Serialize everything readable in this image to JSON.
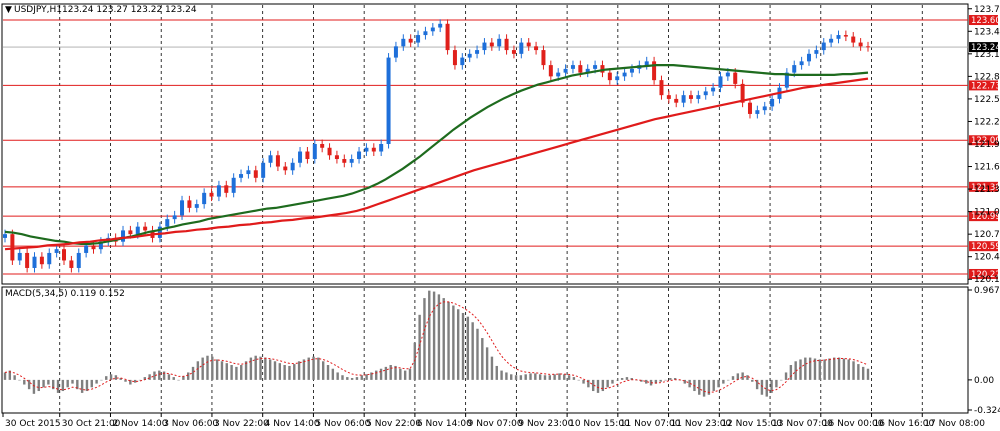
{
  "header": {
    "symbol_info": "USDJPY,H1",
    "ohlc": "123.24 123.27 123.22 123.24"
  },
  "macd_header": {
    "label": "MACD(5,34,5) 0.119 0.152"
  },
  "colors": {
    "bull_candle": "#1e6fd9",
    "bear_candle": "#e0201b",
    "ma_fast": "#1e6b1e",
    "ma_slow": "#e01b1b",
    "level_line": "#e01b1b",
    "macd_bar": "#7f7f7f",
    "signal_line": "#e01b1b",
    "current_price_line": "#a9a9a9"
  },
  "chart_data": {
    "type": "candlestick",
    "y_axis": {
      "range": [
        120.1,
        123.8
      ],
      "ticks": [
        "123.75",
        "123.45",
        "123.15",
        "122.85",
        "122.55",
        "122.25",
        "121.95",
        "121.65",
        "121.35",
        "121.05",
        "120.75",
        "120.45",
        "120.15"
      ]
    },
    "x_axis": {
      "labels": [
        "30 Oct 2015",
        "30 Oct 21:00",
        "2 Nov 14:00",
        "3 Nov 06:00",
        "3 Nov 22:00",
        "4 Nov 14:00",
        "5 Nov 06:00",
        "5 Nov 22:00",
        "6 Nov 14:00",
        "9 Nov 07:00",
        "9 Nov 23:00",
        "10 Nov 15:00",
        "11 Nov 07:00",
        "11 Nov 23:00",
        "12 Nov 15:00",
        "13 Nov 07:00",
        "16 Nov 00:00",
        "16 Nov 16:00",
        "17 Nov 08:00"
      ]
    },
    "levels": [
      {
        "label": "123.60",
        "value": 123.6
      },
      {
        "label": "122.73",
        "value": 122.73
      },
      {
        "label": "122.00",
        "value": 122.0
      },
      {
        "label": "121.38",
        "value": 121.38
      },
      {
        "label": "120.99",
        "value": 120.99
      },
      {
        "label": "120.59",
        "value": 120.59
      },
      {
        "label": "120.22",
        "value": 120.22
      }
    ],
    "current_price": {
      "label": "123.24",
      "value": 123.24
    },
    "closes": [
      120.75,
      120.4,
      120.5,
      120.3,
      120.45,
      120.35,
      120.5,
      120.55,
      120.4,
      120.3,
      120.5,
      120.6,
      120.55,
      120.65,
      120.7,
      120.65,
      120.8,
      120.75,
      120.85,
      120.8,
      120.7,
      120.85,
      120.95,
      121.0,
      121.2,
      121.1,
      121.15,
      121.3,
      121.25,
      121.4,
      121.3,
      121.5,
      121.55,
      121.6,
      121.5,
      121.7,
      121.8,
      121.65,
      121.6,
      121.7,
      121.85,
      121.75,
      121.95,
      121.9,
      121.8,
      121.75,
      121.7,
      121.75,
      121.85,
      121.9,
      121.85,
      121.95,
      123.1,
      123.25,
      123.35,
      123.3,
      123.4,
      123.45,
      123.5,
      123.55,
      123.2,
      123.0,
      123.1,
      123.15,
      123.2,
      123.3,
      123.25,
      123.35,
      123.2,
      123.15,
      123.3,
      123.25,
      123.2,
      123.0,
      122.85,
      122.9,
      122.95,
      123.0,
      122.9,
      122.95,
      123.0,
      122.9,
      122.8,
      122.85,
      122.9,
      122.95,
      123.0,
      123.05,
      122.8,
      122.6,
      122.55,
      122.5,
      122.6,
      122.55,
      122.6,
      122.65,
      122.7,
      122.85,
      122.9,
      122.75,
      122.5,
      122.35,
      122.4,
      122.45,
      122.55,
      122.7,
      122.9,
      123.0,
      123.05,
      123.15,
      123.2,
      123.3,
      123.35,
      123.4,
      123.38,
      123.3,
      123.25,
      123.24
    ],
    "series": [
      {
        "name": "",
        "type": "ma_fast",
        "values": [
          120.78,
          120.77,
          120.75,
          120.72,
          120.7,
          120.68,
          120.66,
          120.65,
          120.63,
          120.62,
          120.62,
          120.63,
          120.65,
          120.67,
          120.7,
          120.72,
          120.75,
          120.78,
          120.8,
          120.83,
          120.85,
          120.88,
          120.9,
          120.92,
          120.95,
          120.97,
          120.99,
          121.01,
          121.03,
          121.05,
          121.07,
          121.09,
          121.1,
          121.12,
          121.14,
          121.16,
          121.18,
          121.2,
          121.22,
          121.24,
          121.26,
          121.29,
          121.33,
          121.37,
          121.42,
          121.48,
          121.55,
          121.62,
          121.7,
          121.78,
          121.87,
          121.96,
          122.05,
          122.14,
          122.22,
          122.3,
          122.37,
          122.44,
          122.5,
          122.56,
          122.61,
          122.66,
          122.7,
          122.74,
          122.77,
          122.8,
          122.83,
          122.86,
          122.88,
          122.9,
          122.92,
          122.94,
          122.95,
          122.96,
          122.97,
          122.98,
          122.99,
          123.0,
          123.0,
          123.0,
          122.99,
          122.98,
          122.97,
          122.96,
          122.95,
          122.94,
          122.93,
          122.92,
          122.91,
          122.9,
          122.89,
          122.88,
          122.88,
          122.87,
          122.87,
          122.87,
          122.87,
          122.87,
          122.87,
          122.88,
          122.88,
          122.89,
          122.9
        ]
      },
      {
        "name": "",
        "type": "ma_slow",
        "values": [
          120.55,
          120.56,
          120.57,
          120.58,
          120.6,
          120.61,
          120.62,
          120.64,
          120.65,
          120.67,
          120.68,
          120.7,
          120.71,
          120.73,
          120.75,
          120.76,
          120.78,
          120.79,
          120.81,
          120.82,
          120.84,
          120.85,
          120.87,
          120.88,
          120.9,
          120.91,
          120.93,
          120.94,
          120.96,
          120.97,
          120.99,
          121.01,
          121.03,
          121.06,
          121.1,
          121.15,
          121.2,
          121.25,
          121.3,
          121.35,
          121.4,
          121.45,
          121.5,
          121.55,
          121.6,
          121.64,
          121.68,
          121.72,
          121.76,
          121.8,
          121.84,
          121.88,
          121.92,
          121.96,
          122.0,
          122.04,
          122.08,
          122.12,
          122.16,
          122.2,
          122.24,
          122.28,
          122.31,
          122.34,
          122.37,
          122.4,
          122.43,
          122.46,
          122.49,
          122.52,
          122.55,
          122.58,
          122.61,
          122.64,
          122.67,
          122.7,
          122.72,
          122.74,
          122.76,
          122.78,
          122.8,
          122.82
        ]
      }
    ],
    "macd": {
      "axis_ticks": [
        "0.967",
        "0.00",
        "-0.324"
      ],
      "range": [
        -0.324,
        0.967
      ],
      "bars": [
        0.08,
        0.1,
        0.05,
        0.0,
        -0.05,
        -0.1,
        -0.15,
        -0.12,
        -0.08,
        -0.05,
        -0.1,
        -0.14,
        -0.12,
        -0.08,
        -0.04,
        -0.1,
        -0.14,
        -0.12,
        -0.08,
        -0.04,
        0.0,
        0.04,
        0.06,
        0.05,
        0.02,
        -0.02,
        -0.05,
        -0.03,
        0.0,
        0.03,
        0.06,
        0.09,
        0.1,
        0.09,
        0.06,
        0.03,
        0.0,
        0.04,
        0.08,
        0.14,
        0.2,
        0.24,
        0.26,
        0.25,
        0.22,
        0.2,
        0.18,
        0.16,
        0.14,
        0.16,
        0.2,
        0.24,
        0.26,
        0.25,
        0.24,
        0.22,
        0.2,
        0.18,
        0.16,
        0.15,
        0.17,
        0.2,
        0.22,
        0.24,
        0.25,
        0.24,
        0.2,
        0.16,
        0.12,
        0.08,
        0.05,
        0.03,
        0.02,
        0.03,
        0.05,
        0.06,
        0.08,
        0.1,
        0.12,
        0.14,
        0.16,
        0.15,
        0.12,
        0.1,
        0.12,
        0.4,
        0.7,
        0.88,
        0.96,
        0.95,
        0.92,
        0.88,
        0.84,
        0.8,
        0.76,
        0.72,
        0.68,
        0.62,
        0.55,
        0.45,
        0.35,
        0.25,
        0.15,
        0.1,
        0.08,
        0.06,
        0.05,
        0.05,
        0.06,
        0.07,
        0.07,
        0.06,
        0.05,
        0.05,
        0.06,
        0.07,
        0.06,
        0.05,
        0.03,
        0.0,
        -0.04,
        -0.08,
        -0.12,
        -0.14,
        -0.12,
        -0.08,
        -0.04,
        0.0,
        0.02,
        0.03,
        0.02,
        0.0,
        -0.02,
        -0.04,
        -0.06,
        -0.04,
        -0.02,
        0.0,
        0.02,
        0.02,
        0.0,
        -0.04,
        -0.08,
        -0.12,
        -0.16,
        -0.18,
        -0.16,
        -0.12,
        -0.08,
        -0.04,
        0.0,
        0.04,
        0.07,
        0.08,
        0.05,
        -0.02,
        -0.1,
        -0.16,
        -0.18,
        -0.14,
        -0.08,
        0.0,
        0.08,
        0.16,
        0.2,
        0.22,
        0.24,
        0.24,
        0.23,
        0.22,
        0.22,
        0.23,
        0.24,
        0.24,
        0.23,
        0.22,
        0.2,
        0.17,
        0.14,
        0.12
      ]
    }
  }
}
